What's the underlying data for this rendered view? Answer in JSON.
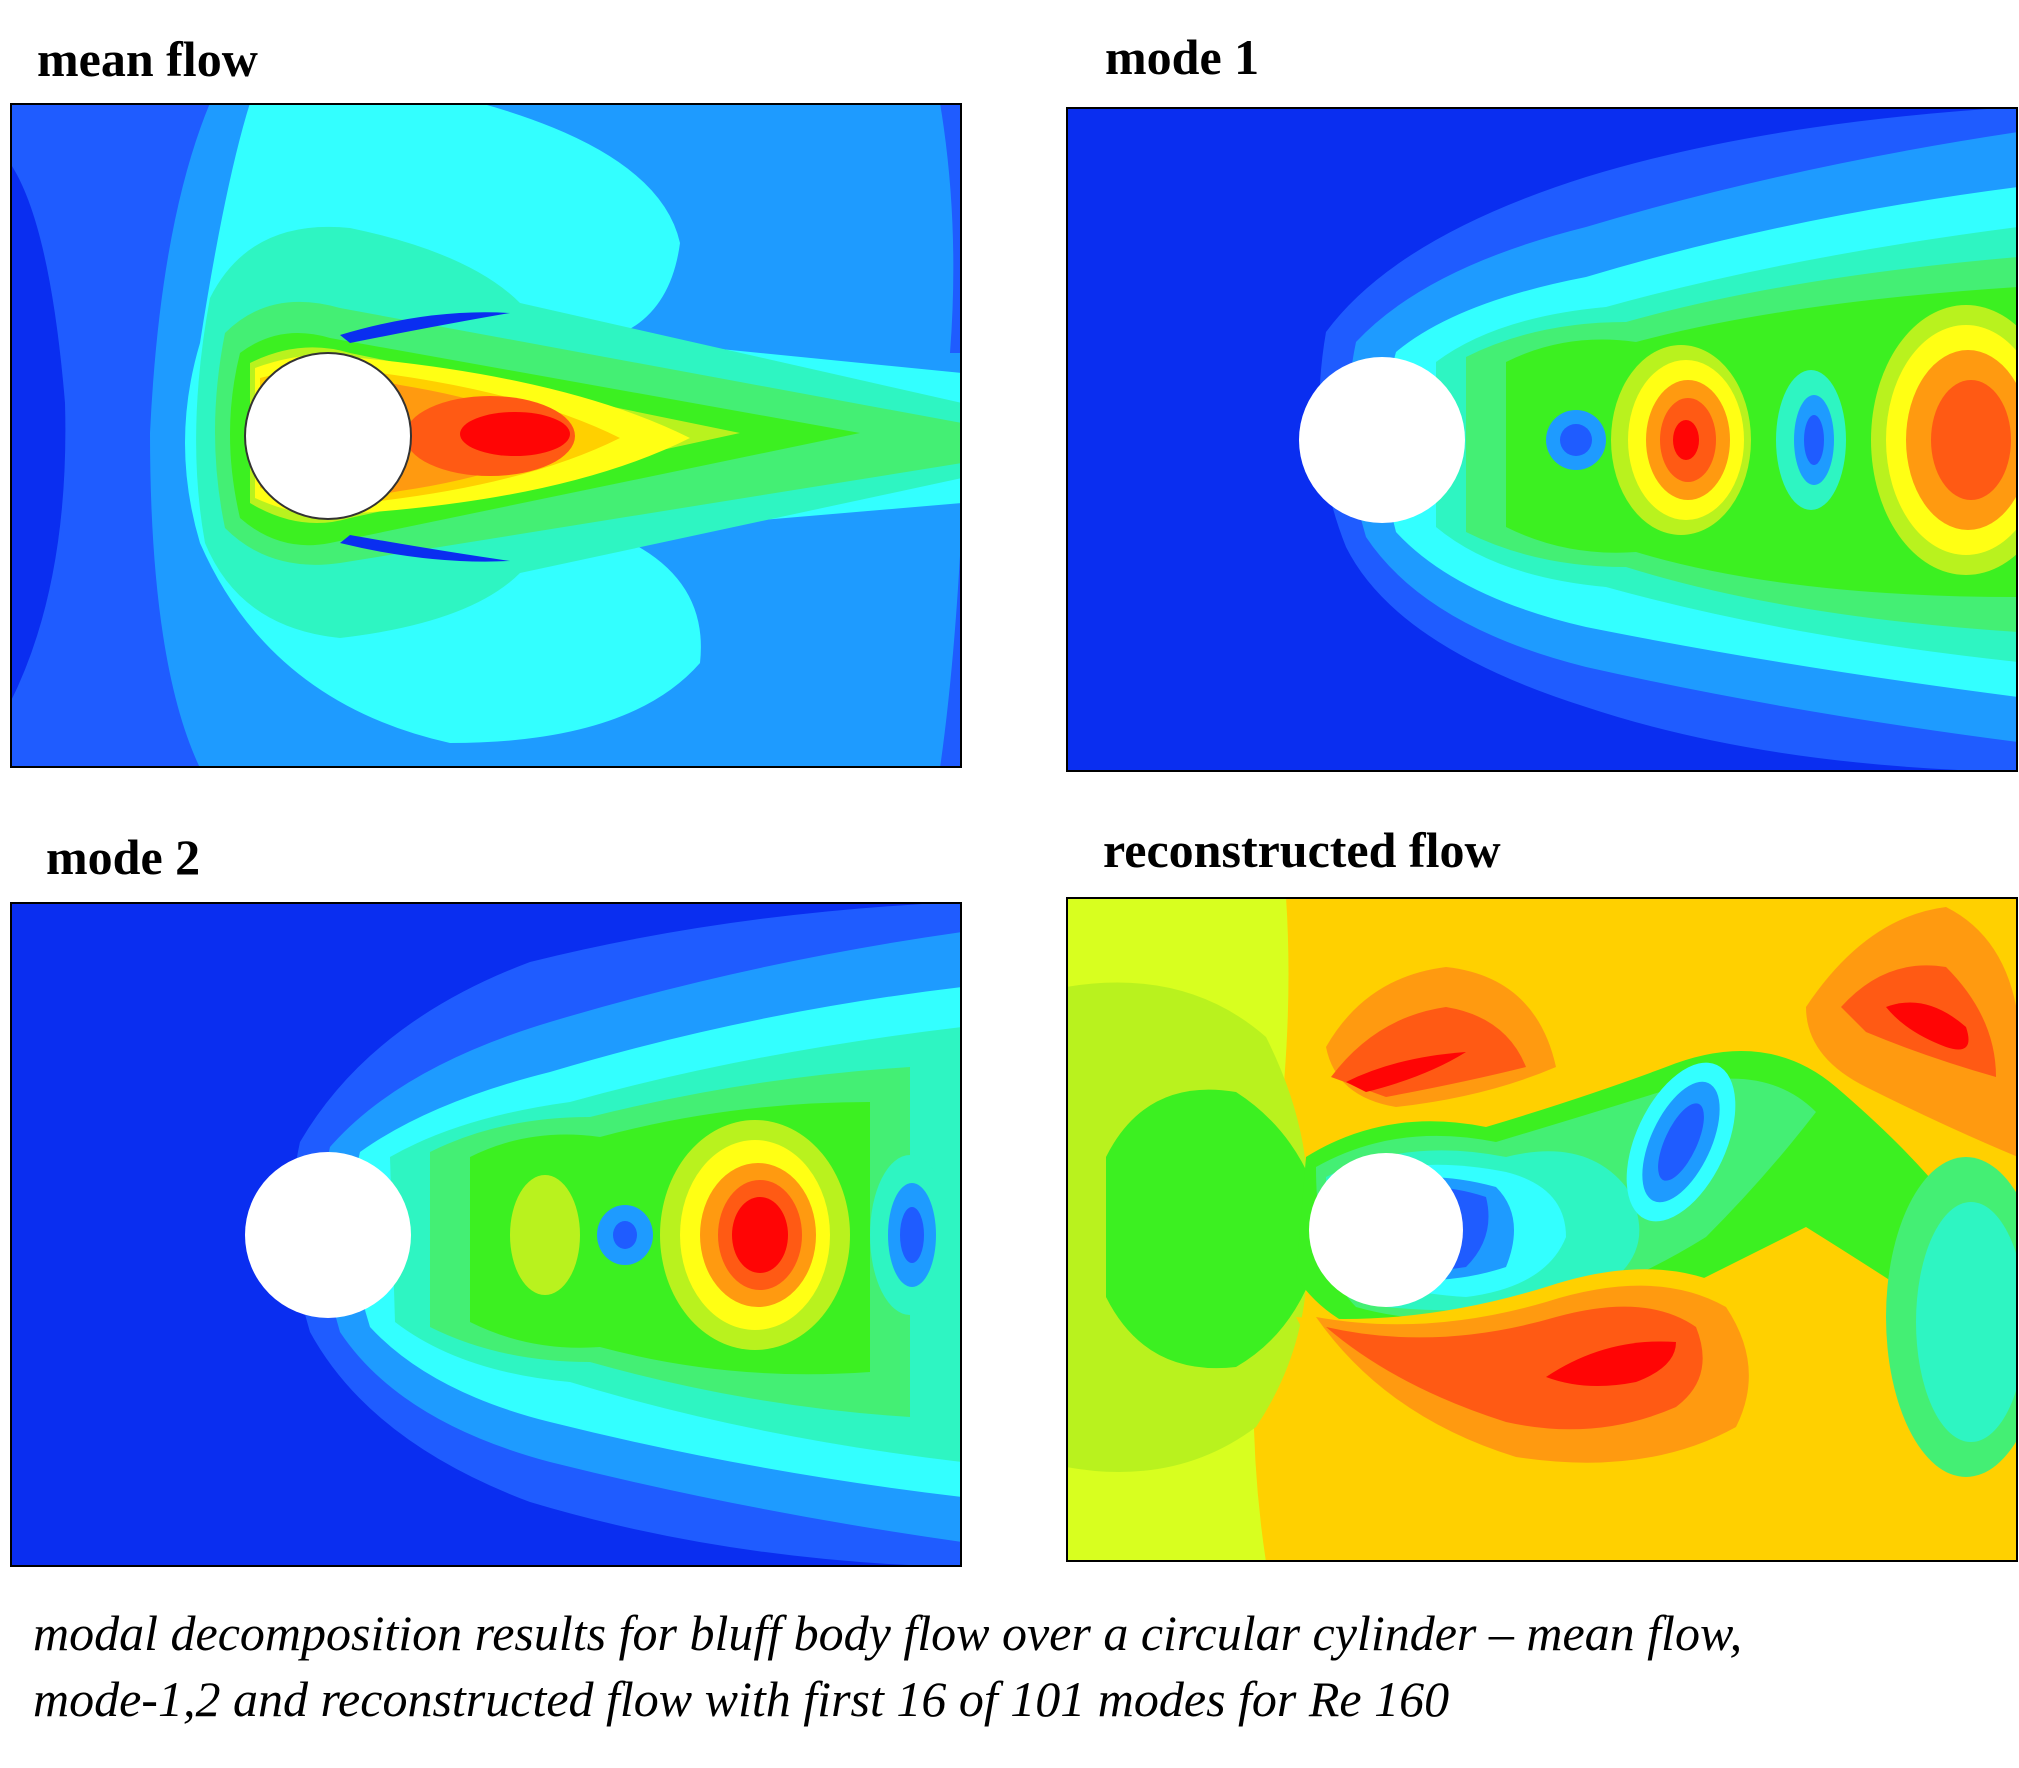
{
  "panels": [
    {
      "title": "mean flow"
    },
    {
      "title": "mode 1"
    },
    {
      "title": "mode 2"
    },
    {
      "title": "reconstructed flow"
    }
  ],
  "caption": {
    "line1": "modal decomposition results for bluff body flow over a circular cylinder – mean flow,",
    "line2": "mode-1,2 and reconstructed flow with first 16 of 101 modes for Re 160"
  },
  "colors": {
    "blue_dark": "#0a2ef0",
    "blue": "#1f5cff",
    "blue_mid": "#1e9bff",
    "cyan": "#33ffff",
    "aqua": "#2ef5c2",
    "green_light": "#44ef74",
    "green": "#3cf021",
    "lime": "#b9f21e",
    "yellow_green": "#d8ff1f",
    "yellow": "#ffff14",
    "gold": "#ffd000",
    "orange": "#ff9a10",
    "orange_red": "#ff5a14",
    "red": "#ff0505",
    "cylinder": "#ffffff"
  }
}
